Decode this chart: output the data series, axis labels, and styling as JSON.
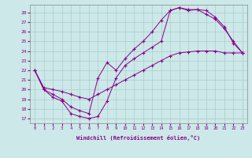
{
  "xlabel": "Windchill (Refroidissement éolien,°C)",
  "bg_color": "#cce8e8",
  "line_color": "#880088",
  "grid_color": "#aacccc",
  "xlim": [
    -0.5,
    23.5
  ],
  "ylim": [
    16.5,
    28.8
  ],
  "yticks": [
    17,
    18,
    19,
    20,
    21,
    22,
    23,
    24,
    25,
    26,
    27,
    28
  ],
  "xticks": [
    0,
    1,
    2,
    3,
    4,
    5,
    6,
    7,
    8,
    9,
    10,
    11,
    12,
    13,
    14,
    15,
    16,
    17,
    18,
    19,
    20,
    21,
    22,
    23
  ],
  "line1_x": [
    0,
    1,
    2,
    3,
    4,
    5,
    6,
    7,
    8,
    9,
    10,
    11,
    12,
    13,
    14,
    15,
    16,
    17,
    18,
    19,
    20,
    21,
    22,
    23
  ],
  "line1_y": [
    22,
    20,
    19.2,
    18.8,
    17.5,
    17.2,
    17.0,
    17.2,
    18.8,
    21.2,
    22.5,
    23.2,
    23.8,
    24.4,
    25.0,
    28.2,
    28.5,
    28.3,
    28.3,
    28.2,
    27.5,
    26.5,
    24.8,
    23.8
  ],
  "line2_x": [
    0,
    1,
    2,
    3,
    4,
    5,
    6,
    7,
    8,
    9,
    10,
    11,
    12,
    13,
    14,
    15,
    16,
    17,
    18,
    19,
    20,
    21,
    22,
    23
  ],
  "line2_y": [
    22,
    20,
    19.5,
    19.0,
    18.2,
    17.8,
    17.5,
    21.2,
    22.8,
    22.0,
    23.2,
    24.2,
    25.0,
    26.0,
    27.2,
    28.2,
    28.5,
    28.2,
    28.3,
    27.8,
    27.3,
    26.3,
    25.0,
    23.8
  ],
  "line3_x": [
    0,
    1,
    2,
    3,
    4,
    5,
    6,
    7,
    8,
    9,
    10,
    11,
    12,
    13,
    14,
    15,
    16,
    17,
    18,
    19,
    20,
    21,
    22,
    23
  ],
  "line3_y": [
    22,
    20.2,
    20.0,
    19.8,
    19.5,
    19.2,
    19.0,
    19.5,
    20.0,
    20.5,
    21.0,
    21.5,
    22.0,
    22.5,
    23.0,
    23.5,
    23.8,
    23.9,
    24.0,
    24.0,
    24.0,
    23.8,
    23.8,
    23.8
  ]
}
